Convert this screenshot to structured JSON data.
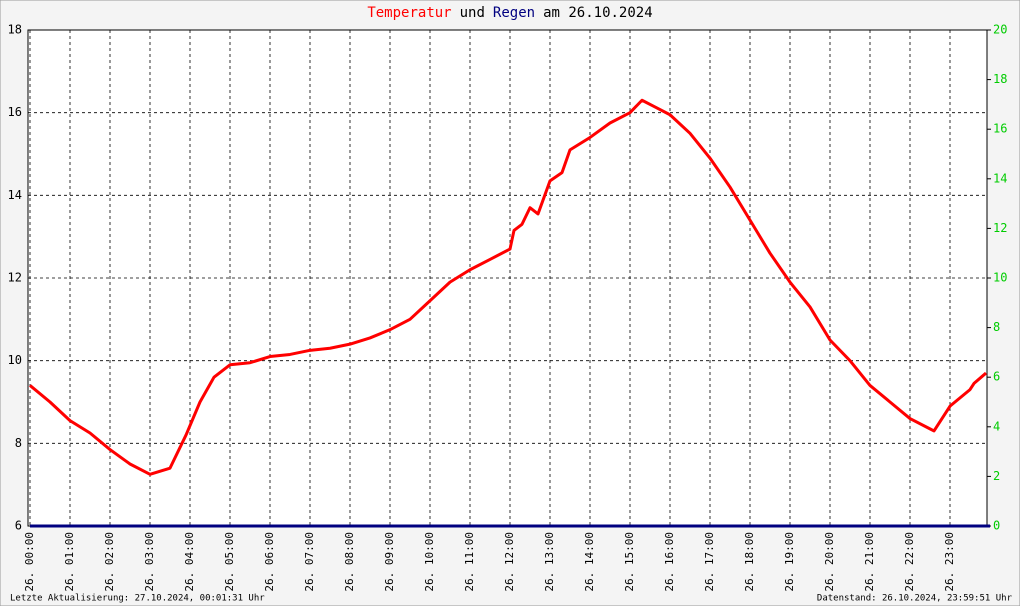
{
  "chart_data": {
    "type": "line",
    "title_parts": [
      {
        "text": "Temperatur",
        "color": "#ff0000"
      },
      {
        "text": "und",
        "color": "#000000"
      },
      {
        "text": "Regen",
        "color": "#000080"
      },
      {
        "text": "am 26.10.2024",
        "color": "#000000"
      }
    ],
    "xlim": [
      0,
      24
    ],
    "xticks": [
      {
        "value": 0,
        "label": "26. 00:00"
      },
      {
        "value": 1,
        "label": "26. 01:00"
      },
      {
        "value": 2,
        "label": "26. 02:00"
      },
      {
        "value": 3,
        "label": "26. 03:00"
      },
      {
        "value": 4,
        "label": "26. 04:00"
      },
      {
        "value": 5,
        "label": "26. 05:00"
      },
      {
        "value": 6,
        "label": "26. 06:00"
      },
      {
        "value": 7,
        "label": "26. 07:00"
      },
      {
        "value": 8,
        "label": "26. 08:00"
      },
      {
        "value": 9,
        "label": "26. 09:00"
      },
      {
        "value": 10,
        "label": "26. 10:00"
      },
      {
        "value": 11,
        "label": "26. 11:00"
      },
      {
        "value": 12,
        "label": "26. 12:00"
      },
      {
        "value": 13,
        "label": "26. 13:00"
      },
      {
        "value": 14,
        "label": "26. 14:00"
      },
      {
        "value": 15,
        "label": "26. 15:00"
      },
      {
        "value": 16,
        "label": "26. 16:00"
      },
      {
        "value": 17,
        "label": "26. 17:00"
      },
      {
        "value": 18,
        "label": "26. 18:00"
      },
      {
        "value": 19,
        "label": "26. 19:00"
      },
      {
        "value": 20,
        "label": "26. 20:00"
      },
      {
        "value": 21,
        "label": "26. 21:00"
      },
      {
        "value": 22,
        "label": "26. 22:00"
      },
      {
        "value": 23,
        "label": "26. 23:00"
      }
    ],
    "ylim": [
      6,
      18
    ],
    "yticks": [
      6,
      8,
      10,
      12,
      14,
      16,
      18
    ],
    "y2lim": [
      0,
      20
    ],
    "y2ticks": [
      0,
      2,
      4,
      6,
      8,
      10,
      12,
      14,
      16,
      18,
      20
    ],
    "y2color": "#00cc00",
    "grid": true,
    "series": [
      {
        "name": "Temperatur",
        "color": "#ff0000",
        "x": [
          0,
          0.5,
          1,
          1.5,
          2,
          2.5,
          3,
          3.5,
          3.9,
          4.25,
          4.6,
          5,
          5.5,
          6,
          6.5,
          7,
          7.5,
          8,
          8.5,
          9,
          9.5,
          10,
          10.5,
          11,
          11.5,
          12,
          12.1,
          12.3,
          12.5,
          12.7,
          13,
          13.3,
          13.5,
          14,
          14.5,
          15,
          15.3,
          15.6,
          16,
          16.5,
          17,
          17.5,
          18,
          18.5,
          19,
          19.5,
          20,
          20.5,
          21,
          21.5,
          22,
          22.5,
          22.6,
          23,
          23.5,
          23.6,
          23.9
        ],
        "values": [
          9.4,
          9.0,
          8.55,
          8.25,
          7.85,
          7.5,
          7.25,
          7.4,
          8.2,
          9.0,
          9.6,
          9.9,
          9.95,
          10.1,
          10.15,
          10.25,
          10.3,
          10.4,
          10.55,
          10.75,
          11.0,
          11.45,
          11.9,
          12.2,
          12.45,
          12.7,
          13.15,
          13.3,
          13.7,
          13.55,
          14.35,
          14.55,
          15.1,
          15.4,
          15.75,
          16.0,
          16.3,
          16.15,
          15.95,
          15.5,
          14.9,
          14.2,
          13.4,
          12.6,
          11.9,
          11.3,
          10.5,
          10.0,
          9.4,
          9.0,
          8.6,
          8.35,
          8.3,
          8.9,
          9.3,
          9.45,
          9.7
        ]
      },
      {
        "name": "Regen",
        "color": "#000080",
        "axis": "y2",
        "x": [
          0,
          24
        ],
        "values": [
          0,
          0
        ]
      }
    ],
    "footer_left": "Letzte Aktualisierung: 27.10.2024, 00:01:31 Uhr",
    "footer_right": "Datenstand: 26.10.2024, 23:59:51 Uhr"
  }
}
